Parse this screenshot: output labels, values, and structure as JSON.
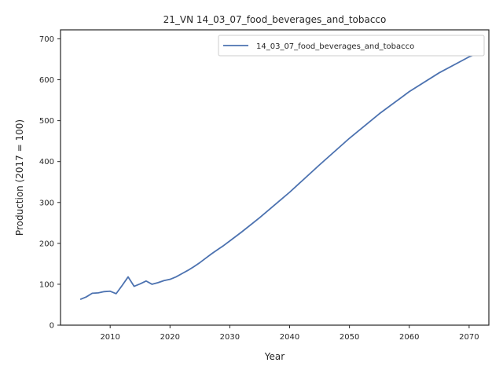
{
  "chart_data": {
    "type": "line",
    "title": "21_VN 14_03_07_food_beverages_and_tobacco",
    "xlabel": "Year",
    "ylabel": "Production (2017 = 100)",
    "xlim": [
      2001.7,
      2073.3
    ],
    "ylim": [
      0,
      722
    ],
    "xticks": [
      2010,
      2020,
      2030,
      2040,
      2050,
      2060,
      2070
    ],
    "yticks": [
      0,
      100,
      200,
      300,
      400,
      500,
      600,
      700
    ],
    "grid": false,
    "legend_position": "top-right",
    "series": [
      {
        "name": "14_03_07_food_beverages_and_tobacco",
        "color": "#4c72b0",
        "x": [
          2005,
          2006,
          2007,
          2008,
          2009,
          2010,
          2011,
          2012,
          2013,
          2014,
          2015,
          2016,
          2017,
          2018,
          2019,
          2020,
          2021,
          2022,
          2023,
          2024,
          2025,
          2026,
          2027,
          2028,
          2029,
          2030,
          2032,
          2035,
          2040,
          2045,
          2050,
          2055,
          2060,
          2065,
          2070,
          2071
        ],
        "values": [
          63,
          69,
          78,
          79,
          82,
          83,
          77,
          97,
          118,
          95,
          101,
          108,
          100,
          104,
          109,
          112,
          118,
          126,
          134,
          143,
          153,
          164,
          175,
          185,
          195,
          206,
          228,
          263,
          325,
          392,
          457,
          517,
          571,
          617,
          656,
          662
        ]
      }
    ]
  }
}
